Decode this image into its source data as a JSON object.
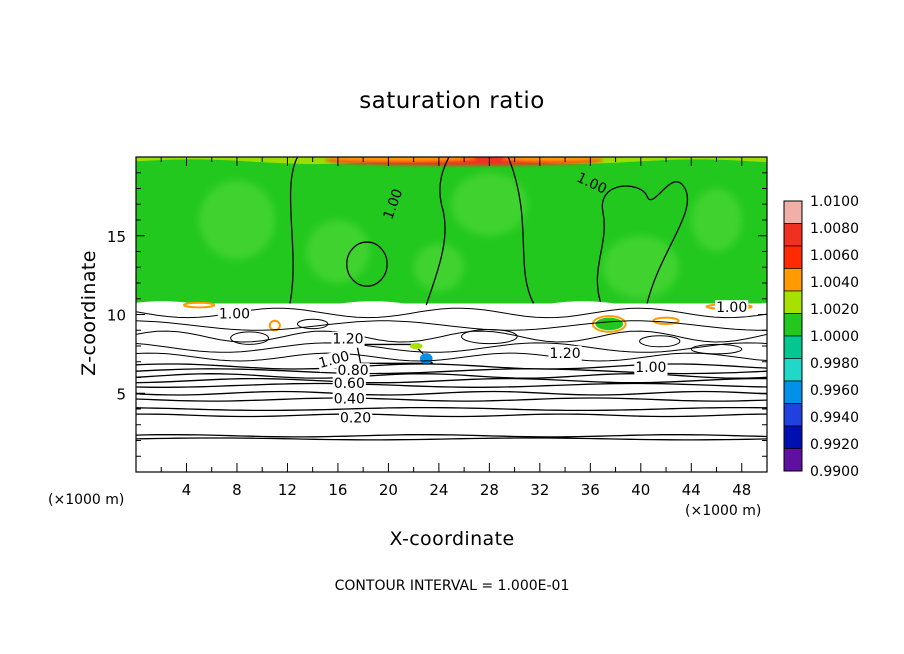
{
  "chart_data": {
    "type": "heatmap",
    "title": "saturation ratio",
    "xlabel": "X-coordinate",
    "ylabel": "Z-coordinate",
    "x_unit_label": "(×1000 m)",
    "footer": "CONTOUR INTERVAL = 1.000E-01",
    "xlim": [
      0,
      50
    ],
    "ylim": [
      0,
      20
    ],
    "x_ticks": [
      4,
      8,
      12,
      16,
      20,
      24,
      28,
      32,
      36,
      40,
      44,
      48
    ],
    "y_ticks": [
      5,
      10,
      15
    ],
    "colorbar": {
      "levels": [
        "1.0100",
        "1.0080",
        "1.0060",
        "1.0040",
        "1.0020",
        "1.0000",
        "0.9980",
        "0.9960",
        "0.9940",
        "0.9920",
        "0.9900"
      ],
      "colors": [
        "#f0b0a8",
        "#f03020",
        "#ff2a00",
        "#ff9a00",
        "#a8e000",
        "#22c81e",
        "#00c890",
        "#20d8c8",
        "#0090e8",
        "#2040e0",
        "#0010b0",
        "#6010a0"
      ]
    },
    "contour_labels": [
      {
        "text": "1.00",
        "x": 20.4,
        "y": 17.0,
        "angle": -70
      },
      {
        "text": "1.00",
        "x": 36.1,
        "y": 18.3,
        "angle": 25
      },
      {
        "text": "1.00",
        "x": 7.8,
        "y": 10.0,
        "angle": 0
      },
      {
        "text": "1.00",
        "x": 47.2,
        "y": 10.4,
        "angle": 0
      },
      {
        "text": "1.00",
        "x": 40.8,
        "y": 6.6,
        "angle": 0
      },
      {
        "text": "1.20",
        "x": 16.8,
        "y": 8.4,
        "angle": 0
      },
      {
        "text": "1.20",
        "x": 34.0,
        "y": 7.5,
        "angle": 0
      },
      {
        "text": "1.00",
        "x": 15.7,
        "y": 7.1,
        "angle": -15
      },
      {
        "text": "0.80",
        "x": 17.2,
        "y": 6.4,
        "angle": 0
      },
      {
        "text": "0.60",
        "x": 16.9,
        "y": 5.6,
        "angle": 0
      },
      {
        "text": "0.40",
        "x": 16.9,
        "y": 4.6,
        "angle": 0
      },
      {
        "text": "0.20",
        "x": 17.4,
        "y": 3.4,
        "angle": 0
      }
    ]
  }
}
